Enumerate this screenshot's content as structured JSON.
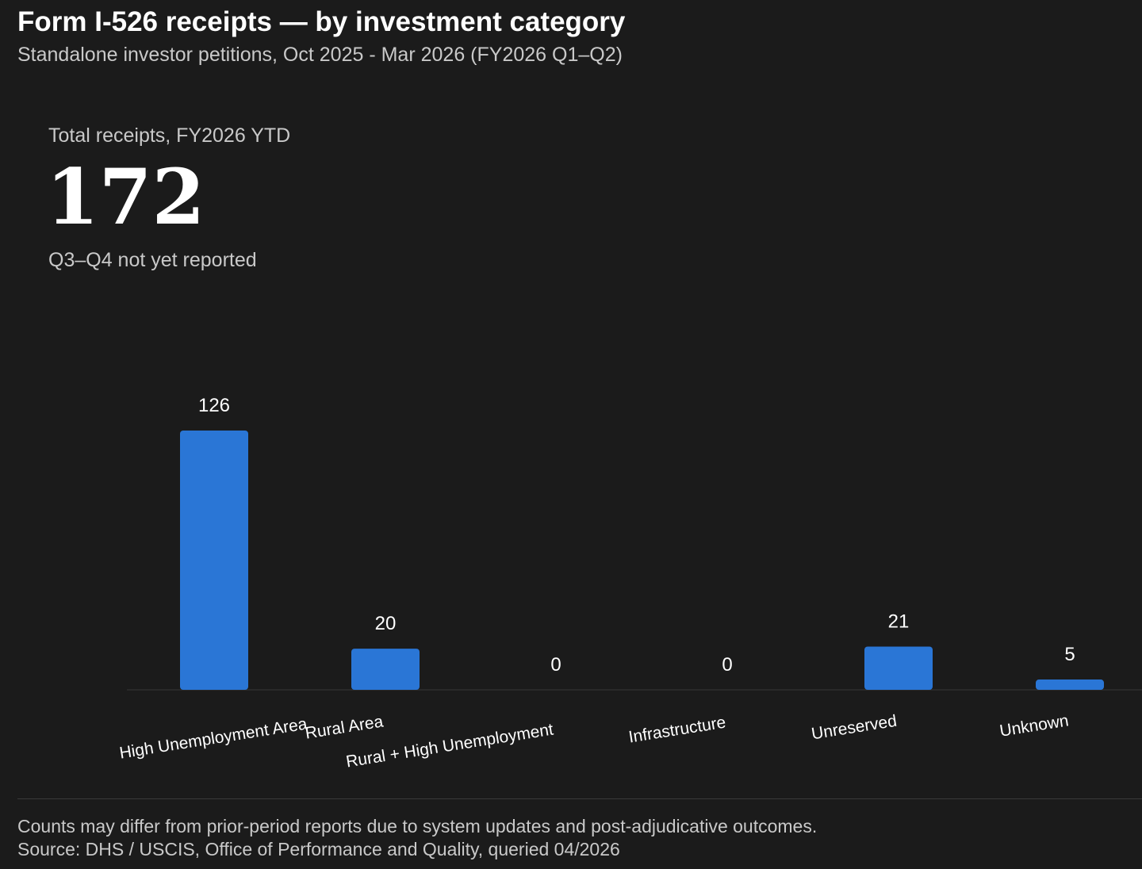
{
  "header": {
    "title": "Form I-526 receipts — by investment category",
    "subtitle": "Standalone investor petitions, Oct 2025 - Mar 2026 (FY2026 Q1–Q2)"
  },
  "kpi": {
    "label": "Total receipts, FY2026 YTD",
    "value": "172",
    "note": "Q3–Q4 not yet reported"
  },
  "chart_data": {
    "type": "bar",
    "categories": [
      "High Unemployment Area",
      "Rural Area",
      "Rural + High Unemployment",
      "Infrastructure",
      "Unreserved",
      "Unknown"
    ],
    "values": [
      126,
      20,
      0,
      0,
      21,
      5
    ],
    "data_labels": [
      "126",
      "20",
      "0",
      "0",
      "21",
      "5"
    ],
    "bar_color": "#2a76d6",
    "background_color": "#1b1b1b",
    "grid": false,
    "legend": "none"
  },
  "footer": {
    "note": "Counts may differ from prior-period reports due to system updates and post-adjudicative outcomes.",
    "source": "Source: DHS / USCIS, Office of Performance and Quality, queried 04/2026"
  }
}
